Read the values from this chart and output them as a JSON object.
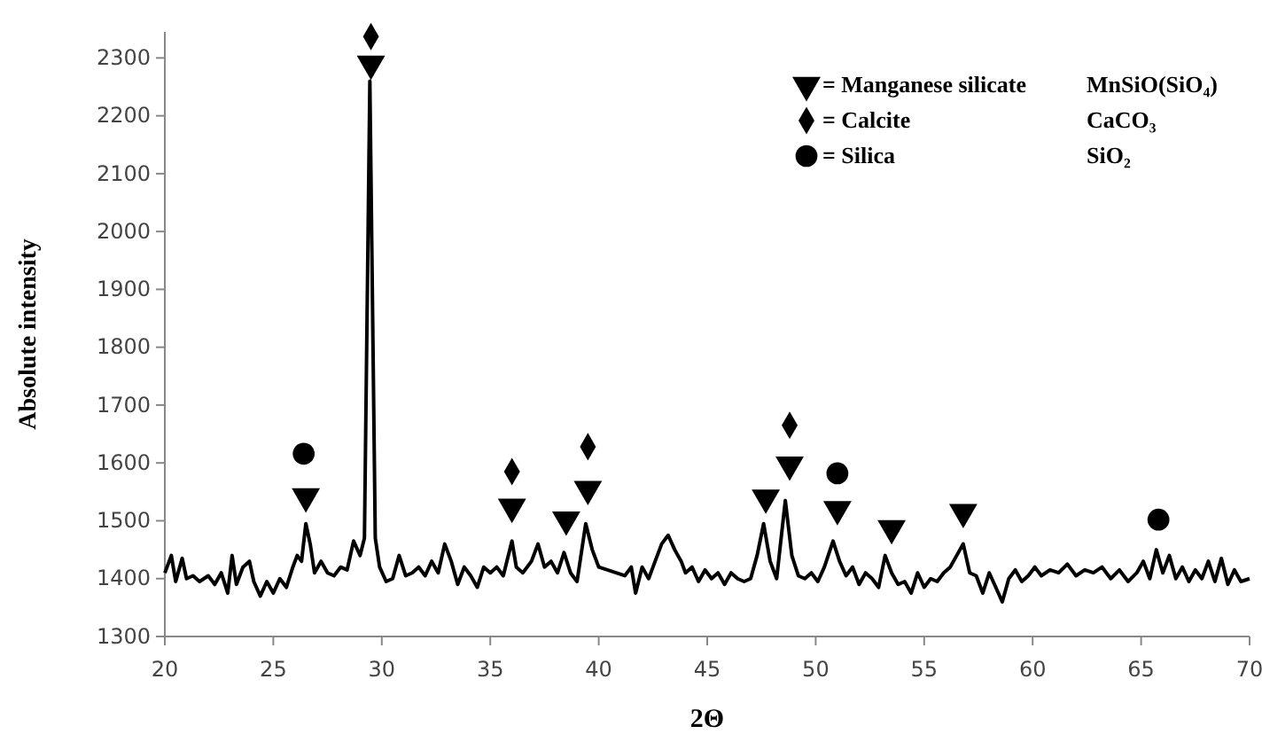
{
  "chart_data": {
    "type": "line",
    "xlabel": "2Θ",
    "ylabel": "Absolute intensity",
    "xlim": [
      20,
      70
    ],
    "xticks": [
      20,
      25,
      30,
      35,
      40,
      45,
      50,
      55,
      60,
      65,
      70
    ],
    "ylim": [
      1300,
      2345
    ],
    "yticks": [
      1300,
      1400,
      1500,
      1600,
      1700,
      1800,
      1900,
      2000,
      2100,
      2200,
      2300
    ],
    "grid": false,
    "legend": "top right",
    "line_style": "solid",
    "annotations": [
      "MnSiO(SiO₄)",
      "CaCO₃",
      "SiO₂"
    ],
    "series": [
      {
        "color": "#000000",
        "x": [
          20.0,
          20.3,
          20.5,
          20.8,
          21.0,
          21.3,
          21.6,
          22.0,
          22.3,
          22.6,
          22.9,
          23.1,
          23.3,
          23.6,
          23.9,
          24.1,
          24.4,
          24.7,
          25.0,
          25.3,
          25.6,
          25.9,
          26.1,
          26.3,
          26.5,
          26.7,
          26.9,
          27.2,
          27.5,
          27.8,
          28.1,
          28.4,
          28.7,
          29.0,
          29.2,
          29.45,
          29.7,
          29.9,
          30.2,
          30.5,
          30.8,
          31.1,
          31.4,
          31.7,
          32.0,
          32.3,
          32.6,
          32.9,
          33.2,
          33.5,
          33.8,
          34.1,
          34.4,
          34.7,
          35.0,
          35.3,
          35.6,
          36.0,
          36.2,
          36.5,
          36.9,
          37.2,
          37.5,
          37.8,
          38.1,
          38.4,
          38.7,
          39.0,
          39.4,
          39.7,
          40.0,
          40.4,
          40.8,
          41.2,
          41.5,
          41.7,
          42.0,
          42.3,
          42.6,
          42.9,
          43.2,
          43.5,
          43.8,
          44.0,
          44.3,
          44.6,
          44.9,
          45.2,
          45.5,
          45.8,
          46.1,
          46.4,
          46.7,
          47.0,
          47.3,
          47.6,
          47.9,
          48.2,
          48.6,
          48.9,
          49.2,
          49.5,
          49.8,
          50.1,
          50.4,
          50.8,
          51.1,
          51.4,
          51.7,
          52.0,
          52.3,
          52.6,
          52.9,
          53.2,
          53.5,
          53.8,
          54.1,
          54.4,
          54.7,
          55.0,
          55.3,
          55.6,
          55.9,
          56.2,
          56.5,
          56.8,
          57.1,
          57.4,
          57.7,
          58.0,
          58.3,
          58.6,
          58.9,
          59.2,
          59.5,
          59.8,
          60.1,
          60.4,
          60.8,
          61.2,
          61.6,
          62.0,
          62.4,
          62.8,
          63.2,
          63.6,
          64.0,
          64.4,
          64.8,
          65.1,
          65.4,
          65.7,
          66.0,
          66.3,
          66.6,
          66.9,
          67.2,
          67.5,
          67.8,
          68.1,
          68.4,
          68.7,
          69.0,
          69.3,
          69.6,
          70.0
        ],
        "values": [
          1410,
          1440,
          1395,
          1435,
          1400,
          1405,
          1395,
          1405,
          1390,
          1410,
          1375,
          1440,
          1390,
          1420,
          1430,
          1395,
          1370,
          1395,
          1375,
          1400,
          1385,
          1420,
          1440,
          1430,
          1495,
          1460,
          1410,
          1430,
          1410,
          1405,
          1420,
          1415,
          1465,
          1440,
          1470,
          2260,
          1470,
          1420,
          1395,
          1400,
          1440,
          1405,
          1410,
          1420,
          1405,
          1430,
          1410,
          1460,
          1430,
          1390,
          1420,
          1405,
          1385,
          1420,
          1410,
          1420,
          1405,
          1465,
          1420,
          1410,
          1430,
          1460,
          1420,
          1430,
          1410,
          1445,
          1410,
          1395,
          1495,
          1450,
          1420,
          1415,
          1410,
          1405,
          1420,
          1375,
          1420,
          1400,
          1430,
          1460,
          1475,
          1450,
          1430,
          1410,
          1420,
          1395,
          1415,
          1400,
          1410,
          1390,
          1410,
          1400,
          1395,
          1400,
          1440,
          1495,
          1430,
          1400,
          1535,
          1440,
          1405,
          1400,
          1410,
          1395,
          1420,
          1465,
          1430,
          1405,
          1420,
          1390,
          1410,
          1400,
          1385,
          1440,
          1410,
          1390,
          1395,
          1375,
          1410,
          1385,
          1400,
          1395,
          1410,
          1420,
          1440,
          1460,
          1410,
          1405,
          1375,
          1410,
          1385,
          1360,
          1400,
          1415,
          1395,
          1405,
          1420,
          1405,
          1415,
          1410,
          1425,
          1405,
          1415,
          1410,
          1420,
          1400,
          1415,
          1395,
          1410,
          1430,
          1400,
          1450,
          1410,
          1440,
          1400,
          1420,
          1395,
          1415,
          1400,
          1430,
          1395,
          1435,
          1390,
          1415,
          1395,
          1400
        ]
      },
      {
        "type": "scatter",
        "name": "= Manganese silicate",
        "color": "#000000",
        "marker": "triangle",
        "x": [
          26.5,
          29.5,
          36.0,
          38.5,
          39.5,
          47.7,
          48.8,
          51.0,
          53.5,
          56.8
        ],
        "values": [
          1542,
          2290,
          1524,
          1502,
          1555,
          1540,
          1597,
          1520,
          1487,
          1515
        ]
      },
      {
        "type": "scatter",
        "name": "= Calcite",
        "color": "#000000",
        "marker": "diamond",
        "x": [
          29.5,
          36.0,
          39.5,
          48.8
        ],
        "values": [
          2337,
          1585,
          1628,
          1665
        ]
      },
      {
        "type": "scatter",
        "name": "= Silica",
        "color": "#000000",
        "marker": "circle",
        "x": [
          26.4,
          51.0,
          65.8
        ],
        "values": [
          1616,
          1582,
          1502
        ]
      }
    ]
  }
}
